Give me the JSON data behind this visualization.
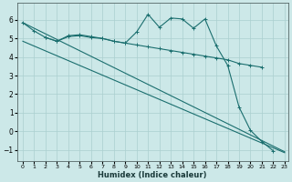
{
  "xlabel": "Humidex (Indice chaleur)",
  "bg_color": "#cce8e8",
  "grid_color": "#aacfcf",
  "line_color": "#1a6e6e",
  "xlim": [
    -0.5,
    23.3
  ],
  "ylim": [
    -1.6,
    6.9
  ],
  "yticks": [
    -1,
    0,
    1,
    2,
    3,
    4,
    5,
    6
  ],
  "xticks": [
    0,
    1,
    2,
    3,
    4,
    5,
    6,
    7,
    8,
    9,
    10,
    11,
    12,
    13,
    14,
    15,
    16,
    17,
    18,
    19,
    20,
    21,
    22,
    23
  ],
  "series_wavy": {
    "x": [
      0,
      1,
      2,
      3,
      4,
      5,
      6,
      7,
      8,
      9,
      10,
      11,
      12,
      13,
      14,
      15,
      16,
      17,
      18,
      19,
      20,
      21,
      22
    ],
    "y": [
      5.85,
      5.4,
      5.05,
      4.85,
      5.15,
      5.2,
      5.1,
      5.0,
      4.85,
      4.75,
      5.35,
      6.3,
      5.6,
      6.1,
      6.05,
      5.55,
      6.05,
      4.6,
      3.55,
      1.3,
      0.05,
      -0.55,
      -1.05
    ]
  },
  "series_flat": {
    "x": [
      2,
      3,
      4,
      5,
      6,
      7,
      8,
      9,
      10,
      11,
      12,
      13,
      14,
      15,
      16,
      17,
      18,
      19,
      20,
      21
    ],
    "y": [
      5.05,
      4.85,
      5.1,
      5.15,
      5.05,
      5.0,
      4.85,
      4.75,
      4.65,
      4.55,
      4.45,
      4.35,
      4.25,
      4.15,
      4.05,
      3.95,
      3.85,
      3.65,
      3.55,
      3.45
    ]
  },
  "series_diag1": {
    "x": [
      0,
      23
    ],
    "y": [
      5.85,
      -1.1
    ]
  },
  "series_diag2": {
    "x": [
      0,
      23
    ],
    "y": [
      4.85,
      -1.15
    ]
  }
}
